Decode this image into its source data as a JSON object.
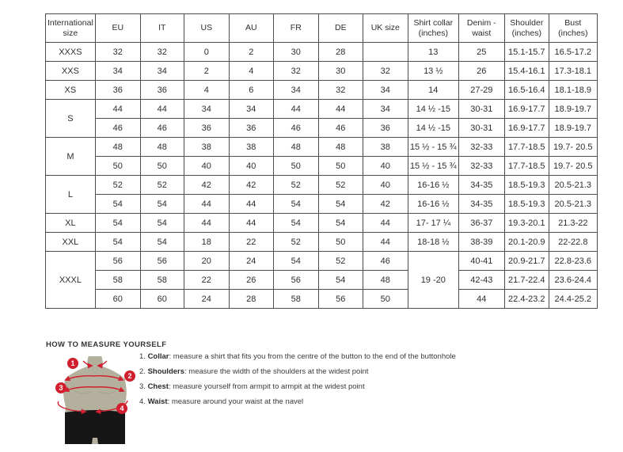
{
  "table": {
    "columns": [
      "International size",
      "EU",
      "IT",
      "US",
      "AU",
      "FR",
      "DE",
      "UK size",
      "Shirt collar (inches)",
      "Denim - waist",
      "Shoulder (inches)",
      "Bust (inches)"
    ],
    "groups": [
      {
        "size": "XXXS",
        "rows": [
          [
            "32",
            "32",
            "0",
            "2",
            "30",
            "28",
            "",
            "13",
            "25",
            "15.1-15.7",
            "16.5-17.2"
          ]
        ]
      },
      {
        "size": "XXS",
        "rows": [
          [
            "34",
            "34",
            "2",
            "4",
            "32",
            "30",
            "32",
            "13 ½",
            "26",
            "15.4-16.1",
            "17.3-18.1"
          ]
        ]
      },
      {
        "size": "XS",
        "rows": [
          [
            "36",
            "36",
            "4",
            "6",
            "34",
            "32",
            "34",
            "14",
            "27-29",
            "16.5-16.4",
            "18.1-18.9"
          ]
        ]
      },
      {
        "size": "S",
        "rows": [
          [
            "44",
            "44",
            "34",
            "34",
            "44",
            "44",
            "34",
            "14 ½ -15",
            "30-31",
            "16.9-17.7",
            "18.9-19.7"
          ],
          [
            "46",
            "46",
            "36",
            "36",
            "46",
            "46",
            "36",
            "14 ½ -15",
            "30-31",
            "16.9-17.7",
            "18.9-19.7"
          ]
        ]
      },
      {
        "size": "M",
        "rows": [
          [
            "48",
            "48",
            "38",
            "38",
            "48",
            "48",
            "38",
            "15 ½ - 15 ¾",
            "32-33",
            "17.7-18.5",
            "19.7- 20.5"
          ],
          [
            "50",
            "50",
            "40",
            "40",
            "50",
            "50",
            "40",
            "15 ½ - 15 ¾",
            "32-33",
            "17.7-18.5",
            "19.7- 20.5"
          ]
        ]
      },
      {
        "size": "L",
        "rows": [
          [
            "52",
            "52",
            "42",
            "42",
            "52",
            "52",
            "40",
            "16-16 ½",
            "34-35",
            "18.5-19.3",
            "20.5-21.3"
          ],
          [
            "54",
            "54",
            "44",
            "44",
            "54",
            "54",
            "42",
            "16-16 ½",
            "34-35",
            "18.5-19.3",
            "20.5-21.3"
          ]
        ]
      },
      {
        "size": "XL",
        "rows": [
          [
            "54",
            "54",
            "44",
            "44",
            "54",
            "54",
            "44",
            "17- 17 ¼",
            "36-37",
            "19.3-20.1",
            "21.3-22"
          ]
        ]
      },
      {
        "size": "XXL",
        "rows": [
          [
            "54",
            "54",
            "18",
            "22",
            "52",
            "50",
            "44",
            "18-18 ½",
            "38-39",
            "20.1-20.9",
            "22-22.8"
          ]
        ]
      },
      {
        "size": "XXXL",
        "collar_merged": "19 -20",
        "rows": [
          [
            "56",
            "56",
            "20",
            "24",
            "54",
            "52",
            "46",
            "40-41",
            "20.9-21.7",
            "22.8-23.6"
          ],
          [
            "58",
            "58",
            "22",
            "26",
            "56",
            "54",
            "48",
            "42-43",
            "21.7-22.4",
            "23.6-24.4"
          ],
          [
            "60",
            "60",
            "24",
            "28",
            "58",
            "56",
            "50",
            "44",
            "22.4-23.2",
            "24.4-25.2"
          ]
        ]
      }
    ]
  },
  "measure": {
    "heading": "HOW TO MEASURE YOURSELF",
    "steps": [
      {
        "num": "1.",
        "label": "Collar",
        "text": ": measure a shirt that fits you from the centre of the button to the end of the buttonhole"
      },
      {
        "num": "2.",
        "label": "Shoulders",
        "text": ": measure the width of the shoulders at the widest point"
      },
      {
        "num": "3.",
        "label": "Chest",
        "text": ": measure yourself from armpit to armpit at the widest point"
      },
      {
        "num": "4.",
        "label": "Waist",
        "text": ": measure around your waist at the navel"
      }
    ],
    "figure_badges": {
      "b1": "1",
      "b2": "2",
      "b3": "3",
      "b4": "4"
    },
    "colors": {
      "accent_red": "#d01f2e",
      "mannequin": "#b4b09e",
      "shorts": "#161616",
      "pec_line": "#a29e8c"
    }
  }
}
